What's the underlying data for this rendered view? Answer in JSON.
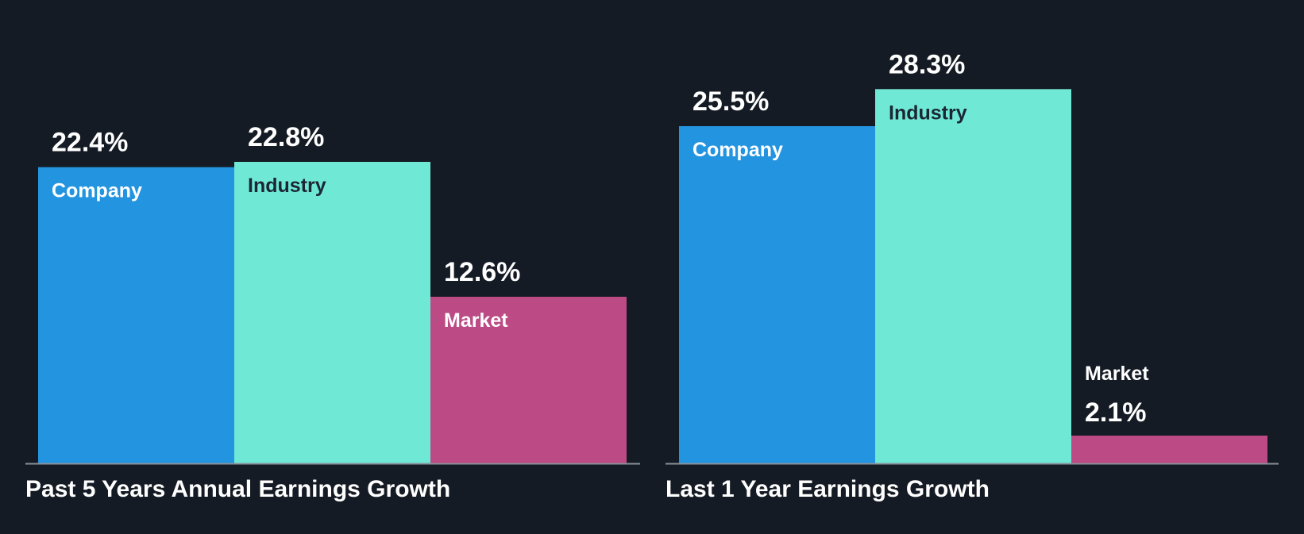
{
  "chart_data": [
    {
      "type": "bar",
      "title": "Past 5 Years Annual Earnings Growth",
      "categories": [
        "Company",
        "Industry",
        "Market"
      ],
      "values": [
        22.4,
        22.8,
        12.6
      ],
      "value_labels": [
        "22.4%",
        "22.8%",
        "12.6%"
      ],
      "unit": "%",
      "ylim": [
        0,
        30
      ],
      "grid": false,
      "colors": [
        "#2394e0",
        "#6fe8d6",
        "#bb4a85"
      ],
      "label_colors": [
        "#ffffff",
        "#1c2633",
        "#ffffff"
      ]
    },
    {
      "type": "bar",
      "title": "Last 1 Year Earnings Growth",
      "categories": [
        "Company",
        "Industry",
        "Market"
      ],
      "values": [
        25.5,
        28.3,
        2.1
      ],
      "value_labels": [
        "25.5%",
        "28.3%",
        "2.1%"
      ],
      "unit": "%",
      "ylim": [
        0,
        30
      ],
      "grid": false,
      "colors": [
        "#2394e0",
        "#6fe8d6",
        "#bb4a85"
      ],
      "label_colors": [
        "#ffffff",
        "#1c2633",
        "#ffffff"
      ]
    }
  ],
  "theme": {
    "background": "#151b24",
    "text": "#ffffff",
    "axis": "#8a9099"
  }
}
